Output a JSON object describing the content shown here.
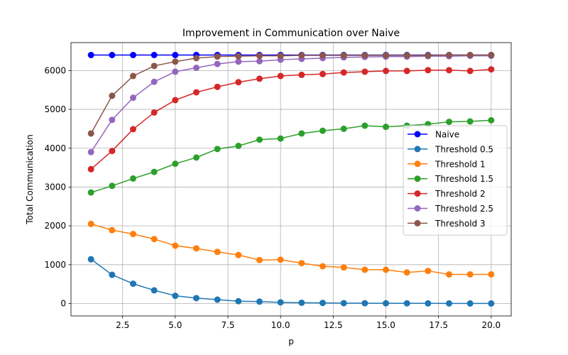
{
  "chart_data": {
    "type": "line",
    "title": "Improvement in Communication over Naive",
    "xlabel": "p",
    "ylabel": "Total Communication",
    "x": [
      1,
      2,
      3,
      4,
      5,
      6,
      7,
      8,
      9,
      10,
      11,
      12,
      13,
      14,
      15,
      16,
      17,
      18,
      19,
      20
    ],
    "xlim": [
      0.05,
      20.95
    ],
    "ylim": [
      -320,
      6720
    ],
    "xticks": [
      2.5,
      5.0,
      7.5,
      10.0,
      12.5,
      15.0,
      17.5,
      20.0
    ],
    "xtick_labels": [
      "2.5",
      "5.0",
      "7.5",
      "10.0",
      "12.5",
      "15.0",
      "17.5",
      "20.0"
    ],
    "yticks": [
      0,
      1000,
      2000,
      3000,
      4000,
      5000,
      6000
    ],
    "ytick_labels": [
      "0",
      "1000",
      "2000",
      "3000",
      "4000",
      "5000",
      "6000"
    ],
    "grid": true,
    "legend_position": "center-right",
    "series": [
      {
        "name": "Naive",
        "color": "#0000ff",
        "values": [
          6400,
          6400,
          6400,
          6400,
          6400,
          6400,
          6400,
          6400,
          6400,
          6400,
          6400,
          6400,
          6400,
          6400,
          6400,
          6400,
          6400,
          6400,
          6400,
          6400
        ]
      },
      {
        "name": "Threshold 0.5",
        "color": "#1f77b4",
        "values": [
          1140,
          740,
          510,
          340,
          200,
          140,
          100,
          60,
          50,
          30,
          20,
          15,
          10,
          8,
          6,
          5,
          4,
          3,
          2,
          2
        ]
      },
      {
        "name": "Threshold 1",
        "color": "#ff7f0e",
        "values": [
          2050,
          1890,
          1790,
          1660,
          1490,
          1420,
          1330,
          1250,
          1120,
          1130,
          1040,
          960,
          930,
          870,
          870,
          800,
          840,
          750,
          750,
          750
        ]
      },
      {
        "name": "Threshold 1.5",
        "color": "#2ca02c",
        "values": [
          2860,
          3030,
          3220,
          3390,
          3600,
          3760,
          3980,
          4060,
          4220,
          4250,
          4380,
          4450,
          4500,
          4580,
          4550,
          4580,
          4620,
          4680,
          4690,
          4720
        ]
      },
      {
        "name": "Threshold 2",
        "color": "#d62728",
        "values": [
          3460,
          3930,
          4490,
          4920,
          5240,
          5440,
          5580,
          5700,
          5790,
          5860,
          5890,
          5910,
          5950,
          5970,
          5990,
          5990,
          6010,
          6010,
          5990,
          6030
        ]
      },
      {
        "name": "Threshold 2.5",
        "color": "#9467bd",
        "values": [
          3900,
          4730,
          5300,
          5710,
          5970,
          6070,
          6170,
          6230,
          6240,
          6280,
          6300,
          6320,
          6340,
          6350,
          6360,
          6360,
          6370,
          6370,
          6380,
          6380
        ]
      },
      {
        "name": "Threshold 3",
        "color": "#8c564b",
        "values": [
          4380,
          5350,
          5860,
          6120,
          6230,
          6320,
          6360,
          6370,
          6380,
          6380,
          6390,
          6390,
          6390,
          6390,
          6390,
          6390,
          6390,
          6400,
          6400,
          6400
        ]
      }
    ]
  }
}
